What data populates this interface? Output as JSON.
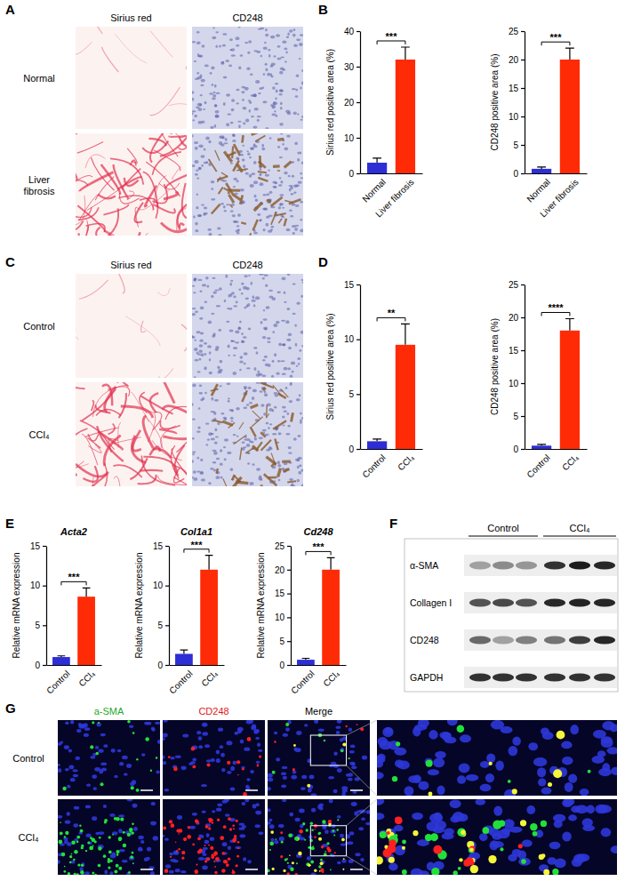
{
  "chart_data": [
    {
      "type": "bar",
      "y_label": "Sirius red positive area (%)",
      "categories": [
        "Normal",
        "Liver fibrosis"
      ],
      "values": [
        3,
        32
      ],
      "errors": [
        1.3,
        3.5
      ],
      "colors": [
        "#2e2ed6",
        "#ff2b06"
      ],
      "ylim": [
        0,
        40
      ],
      "yticks": [
        0,
        10,
        20,
        30,
        40
      ],
      "annotation": "***"
    },
    {
      "type": "bar",
      "y_label": "CD248 positive area (%)",
      "categories": [
        "Normal",
        "Liver fibrosis"
      ],
      "values": [
        0.8,
        20
      ],
      "errors": [
        0.3,
        2
      ],
      "colors": [
        "#2e2ed6",
        "#ff2b06"
      ],
      "ylim": [
        0,
        25
      ],
      "yticks": [
        0,
        5,
        10,
        15,
        20,
        25
      ],
      "annotation": "***"
    },
    {
      "type": "bar",
      "y_label": "Sirius red positive area (%)",
      "categories": [
        "Control",
        "CCl₄"
      ],
      "values": [
        0.7,
        9.5
      ],
      "errors": [
        0.2,
        1.9
      ],
      "colors": [
        "#2e2ed6",
        "#ff2b06"
      ],
      "ylim": [
        0,
        15
      ],
      "yticks": [
        0,
        5,
        10,
        15
      ],
      "annotation": "**"
    },
    {
      "type": "bar",
      "y_label": "CD248 positive area (%)",
      "categories": [
        "Control",
        "CCl₄"
      ],
      "values": [
        0.5,
        18
      ],
      "errors": [
        0.2,
        1.8
      ],
      "colors": [
        "#2e2ed6",
        "#ff2b06"
      ],
      "ylim": [
        0,
        25
      ],
      "yticks": [
        0,
        5,
        10,
        15,
        20,
        25
      ],
      "annotation": "****"
    },
    {
      "type": "bar",
      "title": "Acta2",
      "y_label": "Relative mRNA expression",
      "categories": [
        "Control",
        "CCl₄"
      ],
      "values": [
        1,
        8.6
      ],
      "errors": [
        0.15,
        1.1
      ],
      "colors": [
        "#2e2ed6",
        "#ff2b06"
      ],
      "ylim": [
        0,
        15
      ],
      "yticks": [
        0,
        5,
        10,
        15
      ],
      "annotation": "***"
    },
    {
      "type": "bar",
      "title": "Col1a1",
      "y_label": "Relative mRNA expression",
      "categories": [
        "Control",
        "CCl₄"
      ],
      "values": [
        1.4,
        12
      ],
      "errors": [
        0.5,
        1.8
      ],
      "colors": [
        "#2e2ed6",
        "#ff2b06"
      ],
      "ylim": [
        0,
        15
      ],
      "yticks": [
        0,
        5,
        10,
        15
      ],
      "annotation": "***"
    },
    {
      "type": "bar",
      "title": "Cd248",
      "y_label": "Relative mRNA expression",
      "categories": [
        "Control",
        "CCl₄"
      ],
      "values": [
        1.1,
        20
      ],
      "errors": [
        0.3,
        2.5
      ],
      "colors": [
        "#2e2ed6",
        "#ff2b06"
      ],
      "ylim": [
        0,
        25
      ],
      "yticks": [
        0,
        5,
        10,
        15,
        20,
        25
      ],
      "annotation": "***"
    }
  ],
  "figure": {
    "panel_labels": [
      "A",
      "B",
      "C",
      "D",
      "E",
      "F",
      "G"
    ],
    "A": {
      "columns": [
        "Sirius red",
        "CD248"
      ],
      "rows": [
        "Normal",
        "Liver fibrosis"
      ]
    },
    "C": {
      "columns": [
        "Sirius red",
        "CD248"
      ],
      "rows": [
        "Control",
        "CCl₄"
      ]
    },
    "F": {
      "groups": [
        "Control",
        "CCl₄"
      ],
      "rows": [
        "α-SMA",
        "Collagen I",
        "CD248",
        "GAPDH"
      ]
    },
    "G": {
      "columns": [
        "a-SMA",
        "CD248",
        "Merge"
      ],
      "rows": [
        "Control",
        "CCl₄"
      ]
    }
  }
}
